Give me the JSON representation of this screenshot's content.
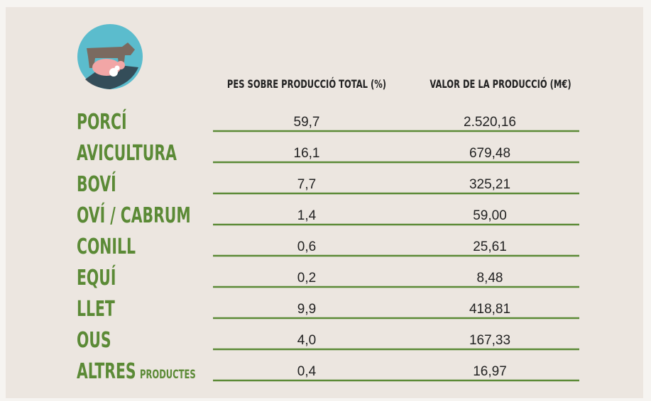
{
  "table": {
    "headers": [
      "PES SOBRE PRODUCCIÓ TOTAL (%)",
      "VALOR DE LA PRODUCCIÓ (M€)"
    ],
    "rows": [
      {
        "label": "PORCÍ",
        "values": [
          "59,7",
          "2.520,16"
        ]
      },
      {
        "label": "AVICULTURA",
        "values": [
          "16,1",
          "679,48"
        ]
      },
      {
        "label": "BOVÍ",
        "values": [
          "7,7",
          "325,21"
        ]
      },
      {
        "label": "OVÍ / CABRUM",
        "values": [
          "1,4",
          "59,00"
        ]
      },
      {
        "label": "CONILL",
        "values": [
          "0,6",
          "25,61"
        ]
      },
      {
        "label": "EQUÍ",
        "values": [
          "0,2",
          "8,48"
        ]
      },
      {
        "label": "LLET",
        "values": [
          "9,9",
          "418,81"
        ]
      },
      {
        "label": "OUS",
        "values": [
          "4,0",
          "167,33"
        ]
      },
      {
        "label": "ALTRES",
        "sublabel": "PRODUCTES",
        "values": [
          "0,4",
          "16,97"
        ]
      }
    ]
  }
}
